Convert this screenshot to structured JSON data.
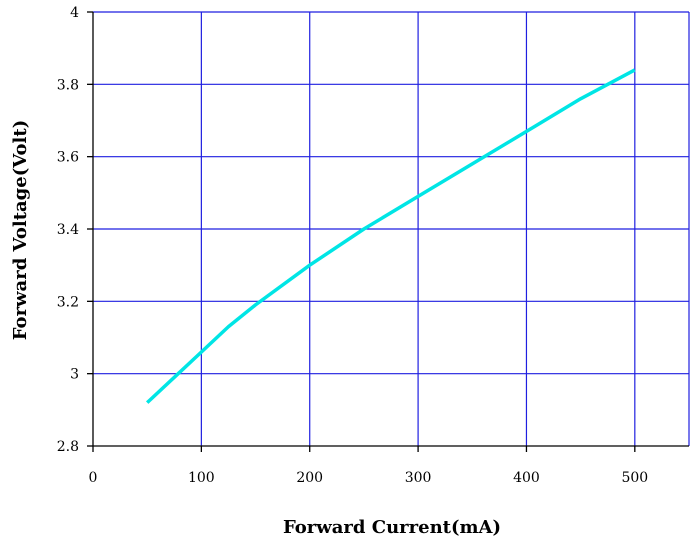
{
  "chart_data": {
    "type": "line",
    "title": "",
    "xlabel": "Forward Current(mA)",
    "ylabel": "Forward Voltage(Volt)",
    "xlim": [
      0,
      550
    ],
    "ylim": [
      2.8,
      4.0
    ],
    "x_ticks": [
      0,
      100,
      200,
      300,
      400,
      500
    ],
    "y_ticks": [
      2.8,
      3,
      3.2,
      3.4,
      3.6,
      3.8,
      4
    ],
    "x_tick_labels": [
      "0",
      "100",
      "200",
      "300",
      "400",
      "500"
    ],
    "y_tick_labels": [
      "2.8",
      "3",
      "3.2",
      "3.4",
      "3.6",
      "3.8",
      "4"
    ],
    "grid": true,
    "series": [
      {
        "color": "#00e5e5",
        "x": [
          50,
          75,
          100,
          125,
          150,
          200,
          250,
          300,
          350,
          400,
          450,
          500
        ],
        "y": [
          2.92,
          2.99,
          3.06,
          3.13,
          3.19,
          3.3,
          3.4,
          3.49,
          3.58,
          3.67,
          3.76,
          3.84
        ]
      }
    ],
    "colors": {
      "grid": "#1f1fe0",
      "axis": "#000000",
      "line": "#00e5e5"
    }
  }
}
